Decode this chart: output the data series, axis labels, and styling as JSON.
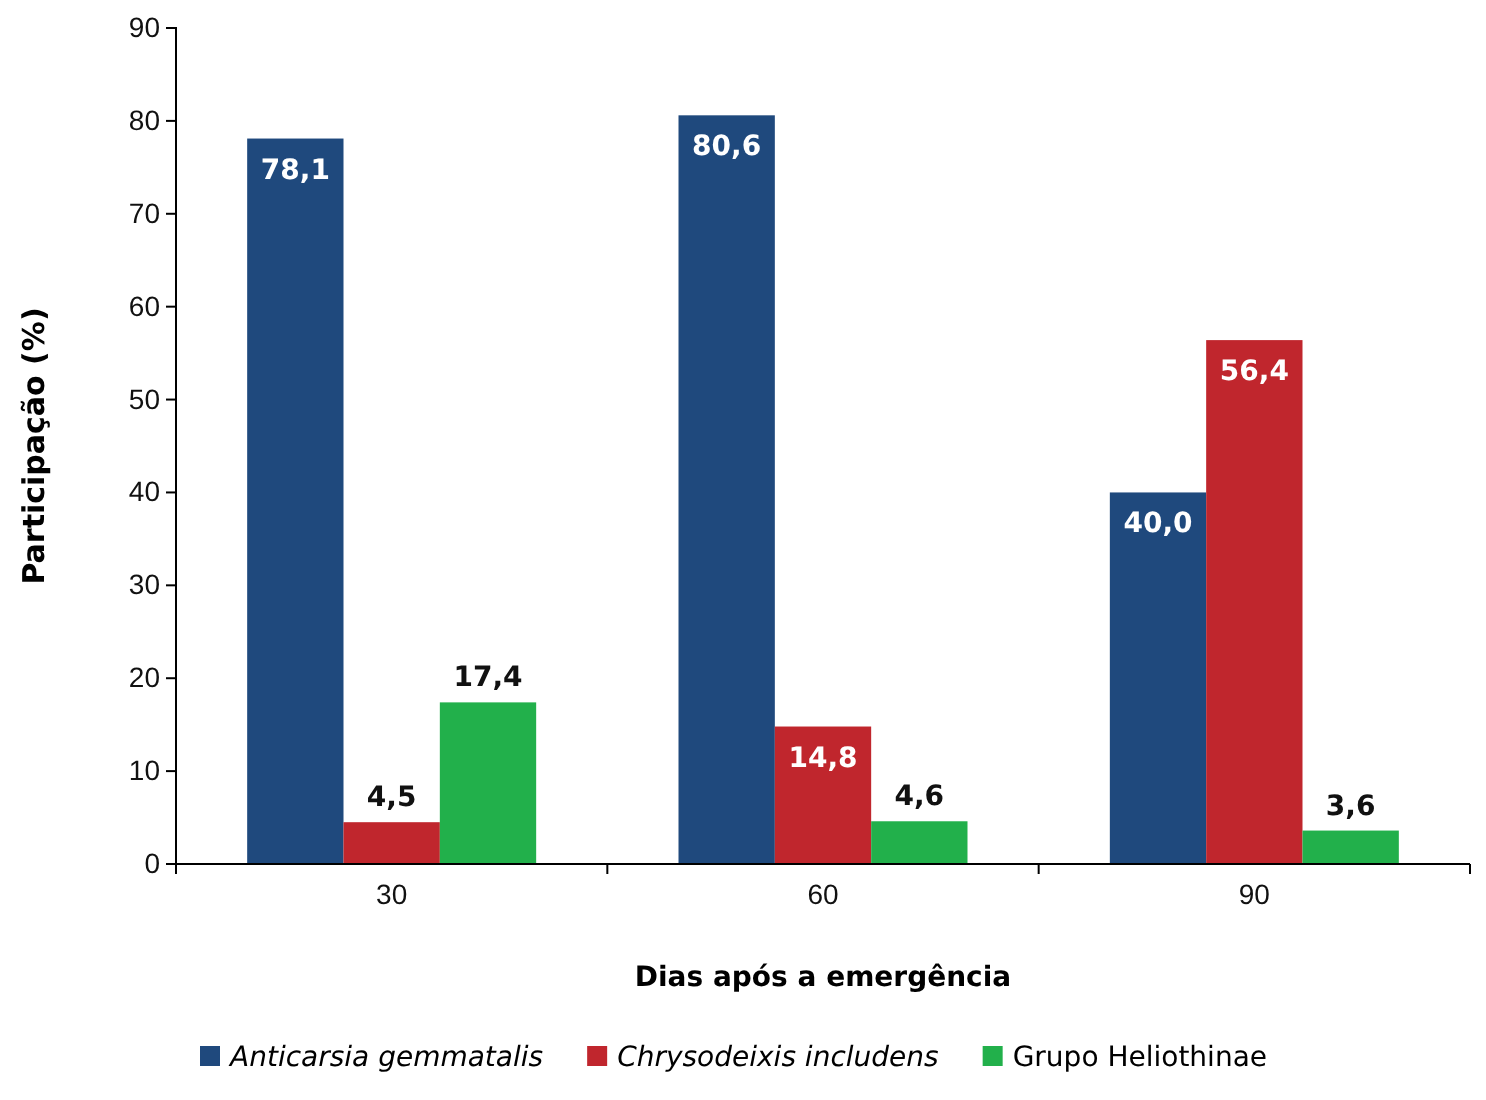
{
  "chart_data": {
    "type": "bar",
    "xlabel": "Dias após a emergência",
    "ylabel": "Participação (%)",
    "categories": [
      "30",
      "60",
      "90"
    ],
    "series": [
      {
        "name": "Anticarsia gemmatalis",
        "color": "#1f497d",
        "values": [
          78.1,
          80.6,
          40.0
        ],
        "value_labels": [
          "78,1",
          "80,6",
          "40,0"
        ]
      },
      {
        "name": "Chrysodeixis includens",
        "color": "#c0262d",
        "values": [
          4.5,
          14.8,
          56.4
        ],
        "value_labels": [
          "4,5",
          "14,8",
          "56,4"
        ]
      },
      {
        "name": "Grupo Heliothinae",
        "color": "#22b04b",
        "values": [
          17.4,
          4.6,
          3.6
        ],
        "value_labels": [
          "17,4",
          "4,6",
          "3,6"
        ]
      }
    ],
    "ylim": [
      0,
      90
    ],
    "yticks": [
      0,
      10,
      20,
      30,
      40,
      50,
      60,
      70,
      80,
      90
    ],
    "grid": false,
    "legend": "bottom"
  }
}
